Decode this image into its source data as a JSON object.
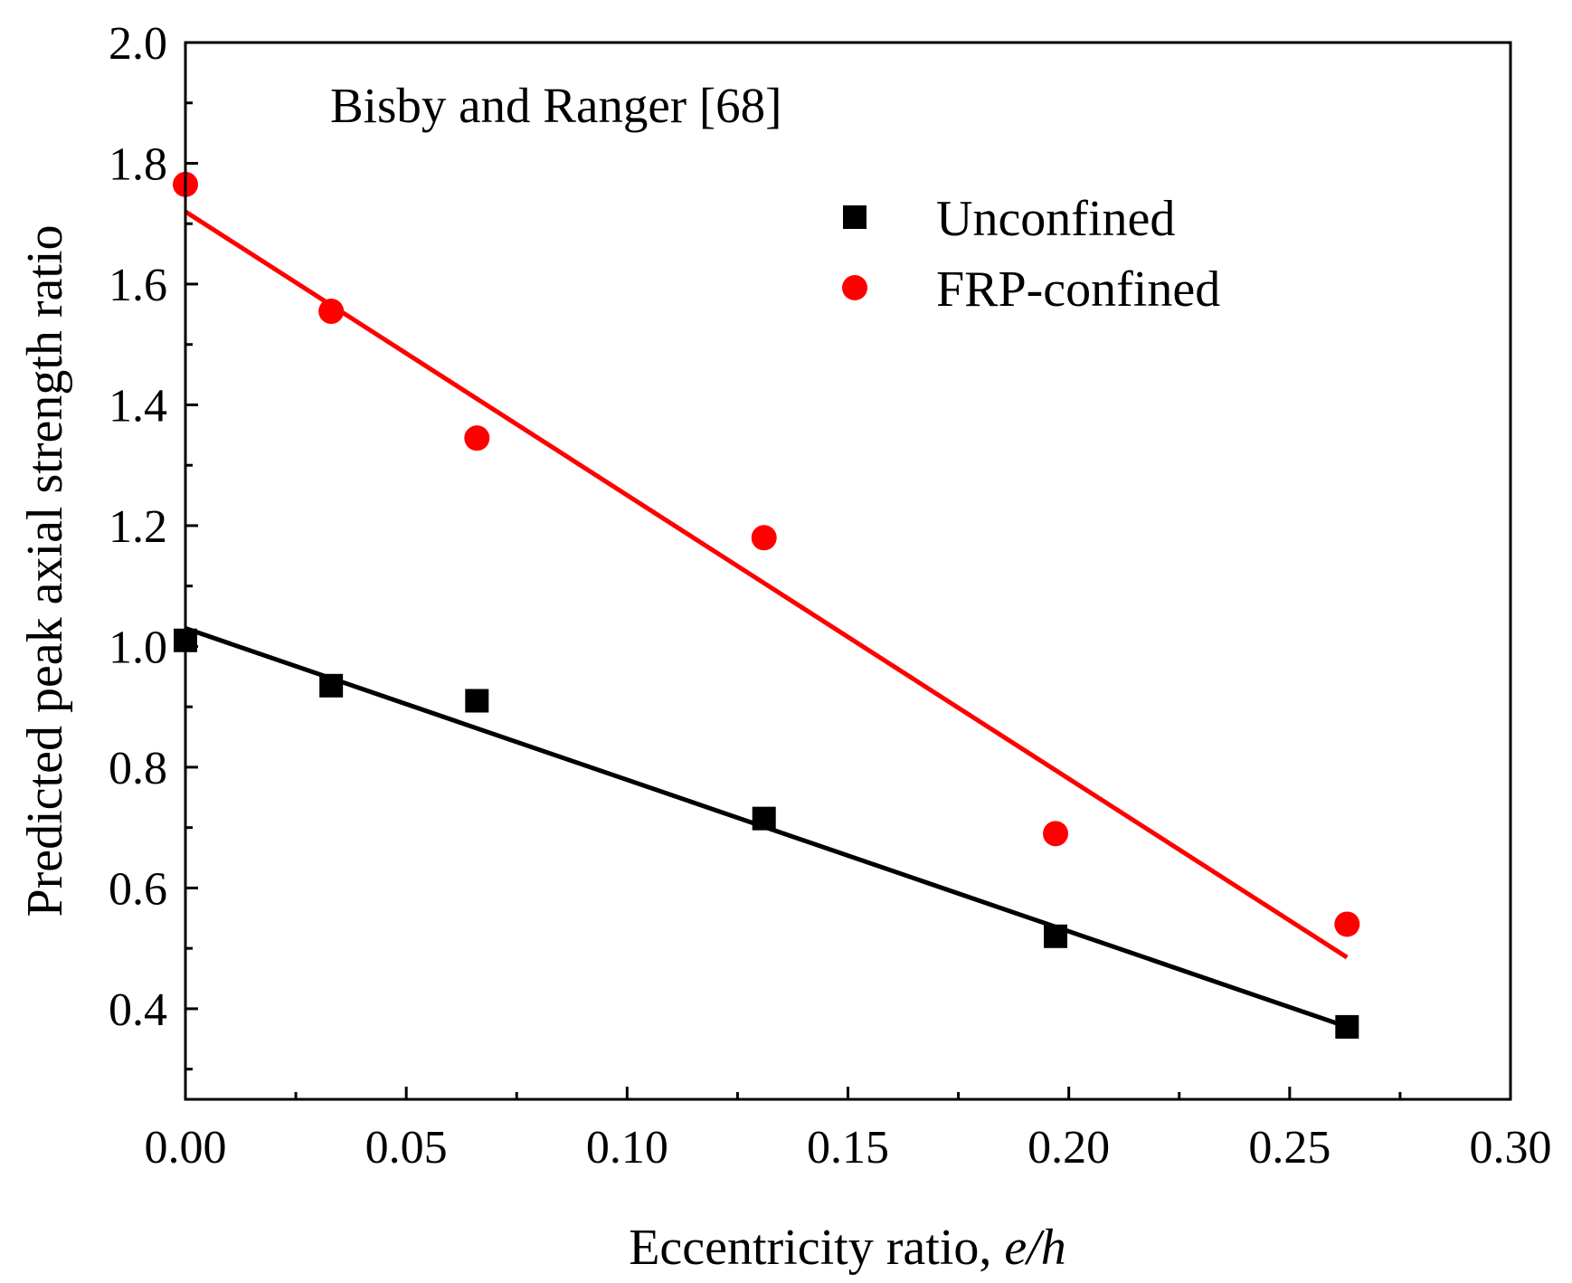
{
  "chart_data": {
    "type": "scatter",
    "annotation": "Bisby and Ranger [68]",
    "xlabel": "Eccentricity ratio, ",
    "xlabel_italic": "e/h",
    "ylabel": "Predicted peak axial strength ratio",
    "xlim": [
      0.0,
      0.3
    ],
    "ylim": [
      0.25,
      2.0
    ],
    "xticks": [
      "0.00",
      "0.05",
      "0.10",
      "0.15",
      "0.20",
      "0.25",
      "0.30"
    ],
    "yticks": [
      "0.4",
      "0.6",
      "0.8",
      "1.0",
      "1.2",
      "1.4",
      "1.6",
      "1.8",
      "2.0"
    ],
    "legend_position": "top-right",
    "series": [
      {
        "name": "Unconfined",
        "marker": "square",
        "color": "#000000",
        "x": [
          0.0,
          0.033,
          0.066,
          0.131,
          0.197,
          0.263
        ],
        "y": [
          1.01,
          0.935,
          0.91,
          0.715,
          0.52,
          0.37
        ],
        "fit": {
          "x": [
            0.0,
            0.263
          ],
          "y": [
            1.03,
            0.37
          ]
        }
      },
      {
        "name": "FRP-confined",
        "marker": "circle",
        "color": "#ff0000",
        "x": [
          0.0,
          0.033,
          0.066,
          0.131,
          0.197,
          0.263
        ],
        "y": [
          1.765,
          1.555,
          1.345,
          1.18,
          0.69,
          0.54
        ],
        "fit": {
          "x": [
            0.0,
            0.263
          ],
          "y": [
            1.72,
            0.485
          ]
        }
      }
    ]
  }
}
